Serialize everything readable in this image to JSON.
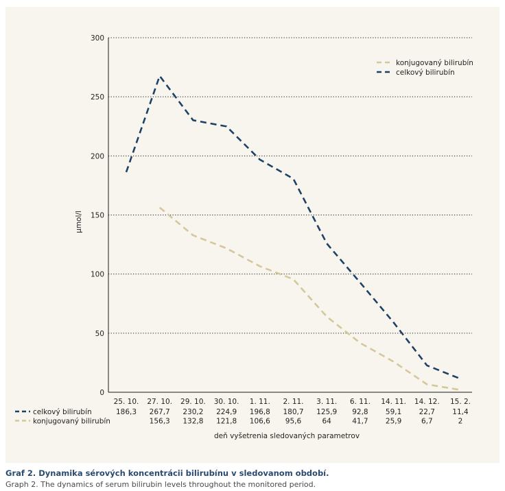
{
  "chart_data": {
    "type": "line",
    "title": "",
    "xlabel": "deň vyšetrenia sledovaných parametrov",
    "ylabel": "µmol/l",
    "ylim": [
      0,
      300
    ],
    "yticks": [
      0,
      50,
      100,
      150,
      200,
      250,
      300
    ],
    "grid": true,
    "legend_position": "top-right",
    "categories": [
      "25. 10.",
      "27. 10.",
      "29. 10.",
      "30. 10.",
      "1. 11.",
      "2. 11.",
      "3. 11.",
      "6. 11.",
      "14. 11.",
      "14. 12.",
      "15. 2."
    ],
    "series": [
      {
        "name": "konjugovaný bilirubín",
        "color": "#d5c79c",
        "style": "dashed",
        "values": [
          null,
          156.3,
          132.8,
          121.8,
          106.6,
          95.6,
          64,
          41.7,
          25.9,
          6.7,
          2
        ],
        "labels": [
          "",
          "156,3",
          "132,8",
          "121,8",
          "106,6",
          "95,6",
          "64",
          "41,7",
          "25,9",
          "6,7",
          "2"
        ]
      },
      {
        "name": "celkový bilirubín",
        "color": "#1e4164",
        "style": "dashed",
        "values": [
          186.3,
          267.7,
          230.2,
          224.9,
          196.8,
          180.7,
          125.9,
          92.8,
          59.1,
          22.7,
          11.4
        ],
        "labels": [
          "186,3",
          "267,7",
          "230,2",
          "224,9",
          "196,8",
          "180,7",
          "125,9",
          "92,8",
          "59,1",
          "22,7",
          "11,4"
        ]
      }
    ],
    "table_rows": [
      "celkový bilirubín",
      "konjugovaný bilirubín"
    ]
  },
  "caption": {
    "title": "Graf 2. Dynamika sérových koncentrácii bilirubínu v sledovanom období.",
    "subtitle": "Graph 2. The dynamics of serum bilirubin levels throughout the monitored period."
  }
}
